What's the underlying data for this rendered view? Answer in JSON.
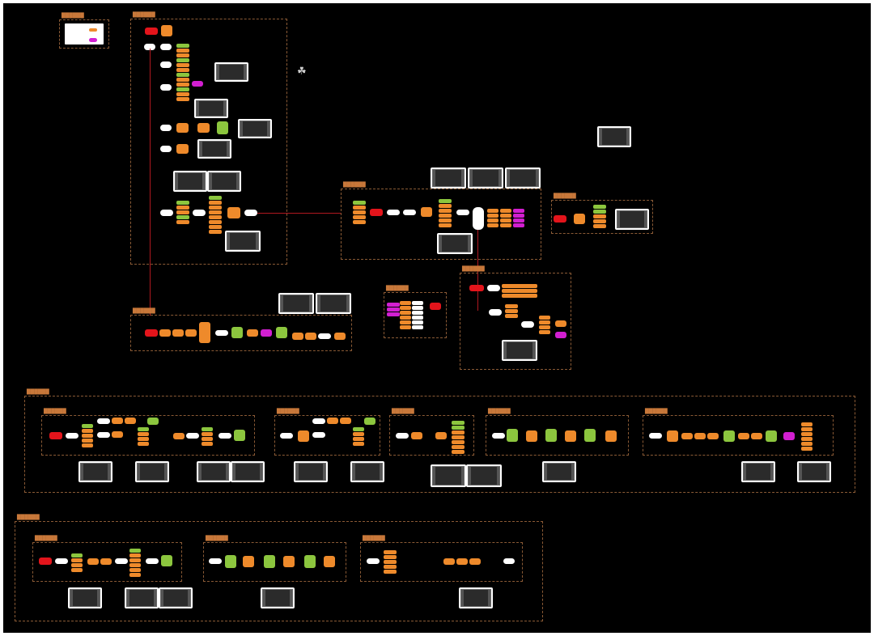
{
  "colors": {
    "background": "#000000",
    "frame": "#8a5a35",
    "start_node": "#e3141b",
    "process_node": "#ee8a2b",
    "check_node": "#8cc63e",
    "special_node": "#d21fd1",
    "connector": "#b01820"
  },
  "groups": [
    {
      "id": "legend",
      "title": "██████"
    },
    {
      "id": "main-flow",
      "title": "██████"
    },
    {
      "id": "bottom-flow",
      "title": "██████"
    },
    {
      "id": "center-flow",
      "title": "██████"
    },
    {
      "id": "right-small",
      "title": "██████"
    },
    {
      "id": "popup",
      "title": "██████"
    },
    {
      "id": "settings",
      "title": "██████"
    },
    {
      "id": "row3-outer",
      "title": "██████"
    },
    {
      "id": "row3-a",
      "title": "██████"
    },
    {
      "id": "row3-b",
      "title": "██████"
    },
    {
      "id": "row3-c",
      "title": "██████"
    },
    {
      "id": "row3-d",
      "title": "██████"
    },
    {
      "id": "row3-e",
      "title": "██████"
    },
    {
      "id": "row4-outer",
      "title": "██████"
    },
    {
      "id": "row4-a",
      "title": "██████"
    },
    {
      "id": "row4-b",
      "title": "██████"
    },
    {
      "id": "row4-c",
      "title": "██████"
    }
  ],
  "icons": {
    "zoom": "cluster-icon"
  }
}
